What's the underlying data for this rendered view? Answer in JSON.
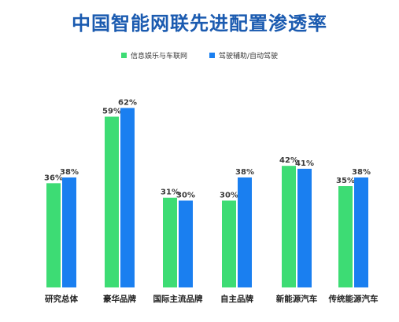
{
  "chart_data": {
    "type": "bar",
    "title": "中国智能网联先进配置渗透率",
    "categories": [
      "研究总体",
      "豪华品牌",
      "国际主流品牌",
      "自主品牌",
      "新能源汽车",
      "传统能源汽车"
    ],
    "series": [
      {
        "name": "信息娱乐与车联网",
        "values": [
          36,
          59,
          31,
          30,
          42,
          35
        ],
        "color": "#3ddc74"
      },
      {
        "name": "驾驶辅助/自动驾驶",
        "values": [
          38,
          62,
          30,
          38,
          41,
          38
        ],
        "color": "#1a7ff0"
      }
    ],
    "value_suffix": "%",
    "ylim": [
      0,
      70
    ],
    "grid": false,
    "legend_position": "top-center",
    "xlabel": "",
    "ylabel": ""
  }
}
